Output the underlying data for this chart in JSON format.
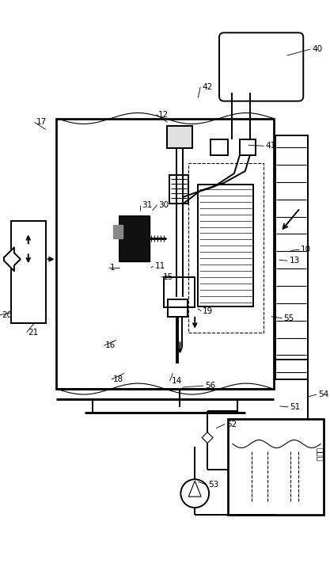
{
  "bg": "#ffffff",
  "lc": "#000000",
  "lw": 1.4,
  "tlw": 0.8,
  "chinese_text": "电解液"
}
